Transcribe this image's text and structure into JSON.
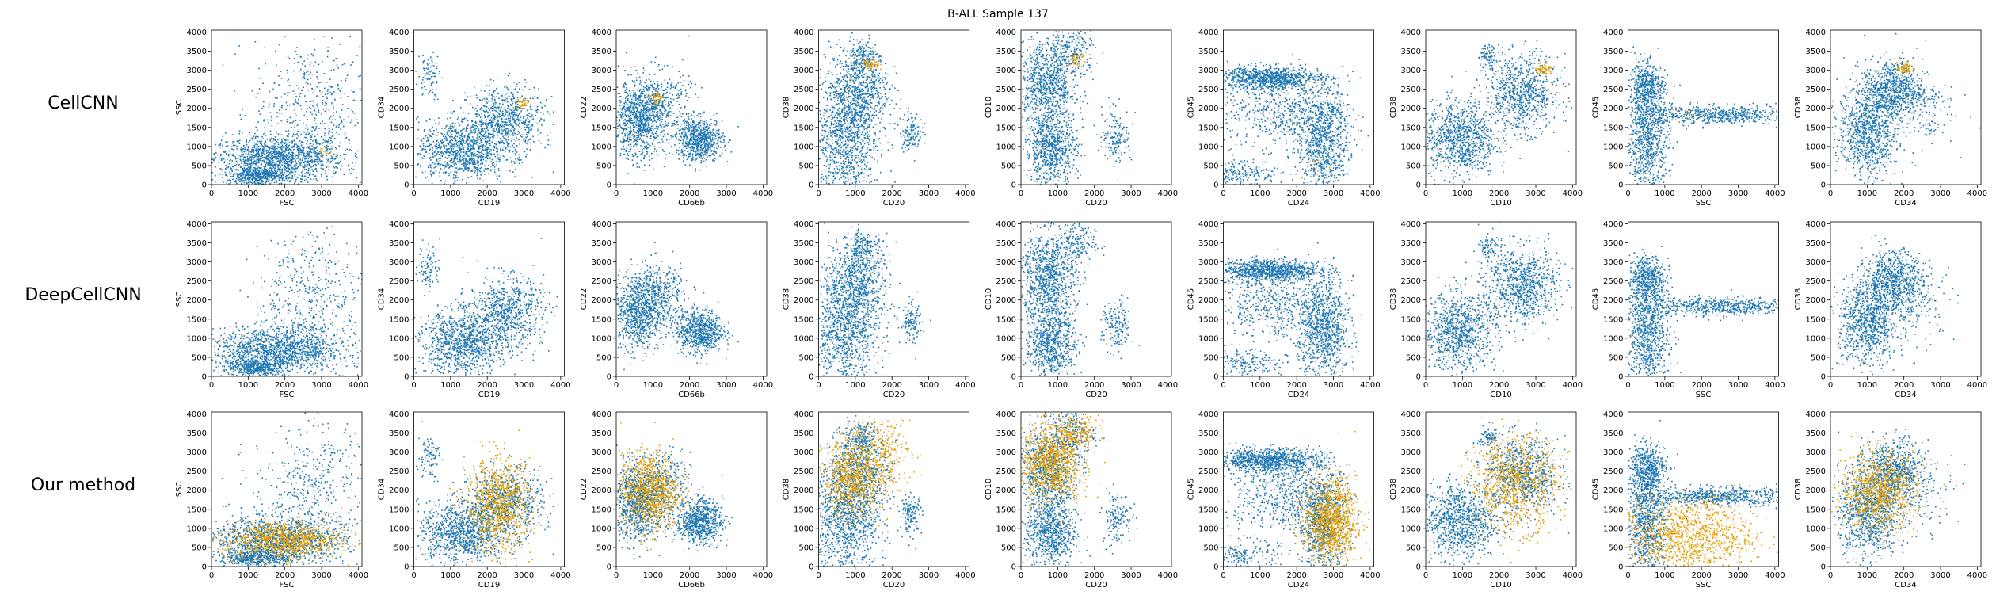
{
  "title": "B-ALL Sample 137",
  "colors": {
    "population": "#1f77b4",
    "highlight": "#e69f00"
  },
  "row_labels": [
    "CellCNN",
    "DeepCellCNN",
    "Our method"
  ],
  "chart_data": {
    "type": "scatter",
    "grid": false,
    "xlim": [
      0,
      4100
    ],
    "ylim": [
      0,
      4050
    ],
    "x_ticks": [
      0,
      1000,
      2000,
      3000,
      4000
    ],
    "y_ticks": [
      0,
      500,
      1000,
      1500,
      2000,
      2500,
      3000,
      3500,
      4000
    ],
    "rows": [
      "CellCNN",
      "DeepCellCNN",
      "Our method"
    ],
    "panels": [
      {
        "xlabel": "FSC",
        "ylabel": "SSC"
      },
      {
        "xlabel": "CD19",
        "ylabel": "CD34"
      },
      {
        "xlabel": "CD66b",
        "ylabel": "CD22"
      },
      {
        "xlabel": "CD20",
        "ylabel": "CD38"
      },
      {
        "xlabel": "CD20",
        "ylabel": "CD10"
      },
      {
        "xlabel": "CD24",
        "ylabel": "CD45"
      },
      {
        "xlabel": "CD10",
        "ylabel": "CD38"
      },
      {
        "xlabel": "SSC",
        "ylabel": "CD45"
      },
      {
        "xlabel": "CD34",
        "ylabel": "CD38"
      }
    ],
    "population_clusters": [
      [
        {
          "cx": 1800,
          "cy": 700,
          "sx": 900,
          "sy": 300,
          "n": 1300
        },
        {
          "cx": 2700,
          "cy": 2000,
          "sx": 800,
          "sy": 900,
          "n": 500
        },
        {
          "cx": 1200,
          "cy": 250,
          "sx": 400,
          "sy": 120,
          "n": 400
        }
      ],
      [
        {
          "cx": 1300,
          "cy": 900,
          "sx": 600,
          "sy": 400,
          "n": 1000
        },
        {
          "cx": 2500,
          "cy": 1700,
          "sx": 500,
          "sy": 450,
          "n": 700
        },
        {
          "cx": 400,
          "cy": 2900,
          "sx": 150,
          "sy": 300,
          "n": 90
        }
      ],
      [
        {
          "cx": 600,
          "cy": 1700,
          "sx": 380,
          "sy": 500,
          "n": 900
        },
        {
          "cx": 2250,
          "cy": 1200,
          "sx": 320,
          "sy": 280,
          "n": 700
        },
        {
          "cx": 1200,
          "cy": 2200,
          "sx": 400,
          "sy": 400,
          "n": 300
        }
      ],
      [
        {
          "cx": 700,
          "cy": 1300,
          "sx": 450,
          "sy": 900,
          "n": 1100
        },
        {
          "cx": 1100,
          "cy": 2500,
          "sx": 400,
          "sy": 600,
          "n": 600
        },
        {
          "cx": 2500,
          "cy": 1400,
          "sx": 150,
          "sy": 250,
          "n": 130
        },
        {
          "cx": 1200,
          "cy": 3400,
          "sx": 180,
          "sy": 200,
          "n": 120
        }
      ],
      [
        {
          "cx": 700,
          "cy": 2600,
          "sx": 400,
          "sy": 600,
          "n": 900
        },
        {
          "cx": 800,
          "cy": 900,
          "sx": 350,
          "sy": 450,
          "n": 700
        },
        {
          "cx": 2600,
          "cy": 1300,
          "sx": 200,
          "sy": 350,
          "n": 150
        },
        {
          "cx": 1400,
          "cy": 3500,
          "sx": 300,
          "sy": 300,
          "n": 200
        }
      ],
      [
        {
          "cx": 1200,
          "cy": 2800,
          "sx": 700,
          "sy": 150,
          "n": 900
        },
        {
          "cx": 2700,
          "cy": 1200,
          "sx": 350,
          "sy": 700,
          "n": 900
        },
        {
          "cx": 1500,
          "cy": 1900,
          "sx": 800,
          "sy": 450,
          "n": 500
        },
        {
          "cx": 500,
          "cy": 300,
          "sx": 500,
          "sy": 200,
          "n": 200
        }
      ],
      [
        {
          "cx": 900,
          "cy": 1200,
          "sx": 500,
          "sy": 500,
          "n": 900
        },
        {
          "cx": 2600,
          "cy": 2400,
          "sx": 500,
          "sy": 500,
          "n": 800
        },
        {
          "cx": 1700,
          "cy": 3400,
          "sx": 150,
          "sy": 150,
          "n": 80
        }
      ],
      [
        {
          "cx": 500,
          "cy": 1200,
          "sx": 300,
          "sy": 800,
          "n": 900
        },
        {
          "cx": 500,
          "cy": 2600,
          "sx": 250,
          "sy": 300,
          "n": 400
        },
        {
          "cx": 2400,
          "cy": 1850,
          "sx": 1100,
          "sy": 120,
          "n": 600
        }
      ],
      [
        {
          "cx": 1000,
          "cy": 1400,
          "sx": 400,
          "sy": 600,
          "n": 900
        },
        {
          "cx": 1700,
          "cy": 2500,
          "sx": 400,
          "sy": 400,
          "n": 700
        },
        {
          "cx": 2400,
          "cy": 2000,
          "sx": 500,
          "sy": 500,
          "n": 150
        }
      ]
    ],
    "highlight_clusters": {
      "CellCNN": [
        [
          {
            "cx": 3000,
            "cy": 900,
            "sx": 120,
            "sy": 80,
            "n": 12
          }
        ],
        [
          {
            "cx": 2900,
            "cy": 2150,
            "sx": 100,
            "sy": 100,
            "n": 40
          }
        ],
        [
          {
            "cx": 1100,
            "cy": 2300,
            "sx": 100,
            "sy": 80,
            "n": 40
          }
        ],
        [
          {
            "cx": 1400,
            "cy": 3150,
            "sx": 120,
            "sy": 80,
            "n": 60
          }
        ],
        [
          {
            "cx": 1500,
            "cy": 3300,
            "sx": 100,
            "sy": 80,
            "n": 40
          }
        ],
        [
          {
            "cx": 2500,
            "cy": 400,
            "sx": 200,
            "sy": 200,
            "n": 10
          }
        ],
        [
          {
            "cx": 3200,
            "cy": 3050,
            "sx": 100,
            "sy": 80,
            "n": 60
          }
        ],
        [
          {
            "cx": 1500,
            "cy": 1900,
            "sx": 300,
            "sy": 100,
            "n": 10
          }
        ],
        [
          {
            "cx": 2000,
            "cy": 3050,
            "sx": 100,
            "sy": 80,
            "n": 60
          }
        ]
      ],
      "DeepCellCNN": [
        [],
        [],
        [],
        [],
        [],
        [],
        [],
        [],
        []
      ],
      "Our method": [
        [
          {
            "cx": 1900,
            "cy": 700,
            "sx": 800,
            "sy": 250,
            "n": 900
          }
        ],
        [
          {
            "cx": 2300,
            "cy": 1600,
            "sx": 450,
            "sy": 600,
            "n": 900
          }
        ],
        [
          {
            "cx": 900,
            "cy": 2000,
            "sx": 400,
            "sy": 500,
            "n": 900
          }
        ],
        [
          {
            "cx": 900,
            "cy": 2300,
            "sx": 400,
            "sy": 500,
            "n": 700
          },
          {
            "cx": 1700,
            "cy": 3000,
            "sx": 400,
            "sy": 500,
            "n": 300
          }
        ],
        [
          {
            "cx": 800,
            "cy": 2700,
            "sx": 400,
            "sy": 500,
            "n": 900
          },
          {
            "cx": 1500,
            "cy": 3500,
            "sx": 300,
            "sy": 250,
            "n": 200
          }
        ],
        [
          {
            "cx": 2900,
            "cy": 1200,
            "sx": 350,
            "sy": 550,
            "n": 1100
          }
        ],
        [
          {
            "cx": 2400,
            "cy": 2200,
            "sx": 600,
            "sy": 600,
            "n": 900
          }
        ],
        [
          {
            "cx": 1600,
            "cy": 800,
            "sx": 900,
            "sy": 500,
            "n": 1100
          }
        ],
        [
          {
            "cx": 1300,
            "cy": 2000,
            "sx": 500,
            "sy": 500,
            "n": 900
          }
        ]
      ]
    }
  }
}
